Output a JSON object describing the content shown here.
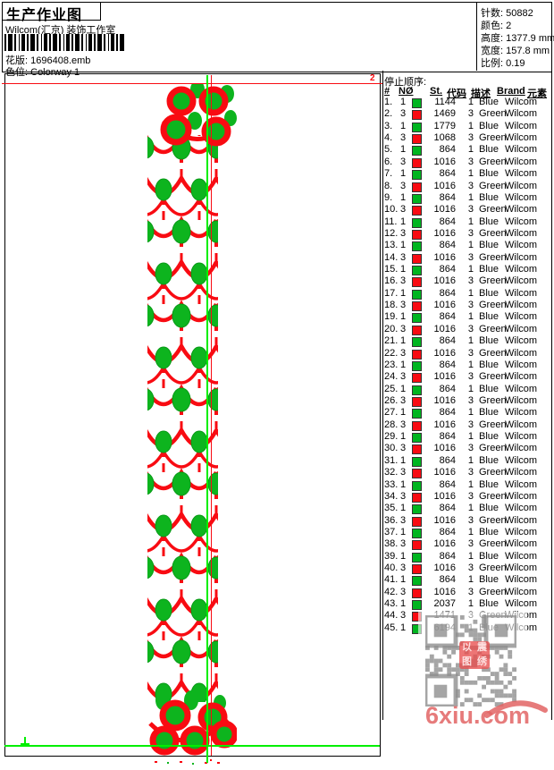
{
  "header": {
    "title": "生产作业图",
    "company": "Wilcom(汇京) 装饰工作室",
    "pattern_label": "花版:",
    "pattern_value": "1696408.emb",
    "colorway_label": "色位:",
    "colorway_value": "Colorway 1"
  },
  "info": {
    "stitches_label": "针数:",
    "stitches_value": "50882",
    "colors_label": "颜色:",
    "colors_value": "2",
    "height_label": "高度:",
    "height_value": "1377.9 mm",
    "width_label": "宽度:",
    "width_value": "157.8 mm",
    "scale_label": "比例:",
    "scale_value": "0.19"
  },
  "design": {
    "stop_marker_top": "2",
    "stitch_red": "#f80b12",
    "motif_green": "#0db41e",
    "guide_green": "#00ef00"
  },
  "table": {
    "caption": "停止顺序:",
    "columns": [
      "#",
      "NØ",
      "St.",
      "代码",
      "描述",
      "Brand",
      "元素"
    ],
    "rows": [
      {
        "n": "1.",
        "no": "1",
        "c": "#00b520",
        "st": "1144",
        "code": "1",
        "desc": "Blue",
        "brand": "Wilcom"
      },
      {
        "n": "2.",
        "no": "3",
        "c": "#f80b12",
        "st": "1469",
        "code": "3",
        "desc": "Green",
        "brand": "Wilcom"
      },
      {
        "n": "3.",
        "no": "1",
        "c": "#00b520",
        "st": "1779",
        "code": "1",
        "desc": "Blue",
        "brand": "Wilcom"
      },
      {
        "n": "4.",
        "no": "3",
        "c": "#f80b12",
        "st": "1068",
        "code": "3",
        "desc": "Green",
        "brand": "Wilcom"
      },
      {
        "n": "5.",
        "no": "1",
        "c": "#00b520",
        "st": "864",
        "code": "1",
        "desc": "Blue",
        "brand": "Wilcom"
      },
      {
        "n": "6.",
        "no": "3",
        "c": "#f80b12",
        "st": "1016",
        "code": "3",
        "desc": "Green",
        "brand": "Wilcom"
      },
      {
        "n": "7.",
        "no": "1",
        "c": "#00b520",
        "st": "864",
        "code": "1",
        "desc": "Blue",
        "brand": "Wilcom"
      },
      {
        "n": "8.",
        "no": "3",
        "c": "#f80b12",
        "st": "1016",
        "code": "3",
        "desc": "Green",
        "brand": "Wilcom"
      },
      {
        "n": "9.",
        "no": "1",
        "c": "#00b520",
        "st": "864",
        "code": "1",
        "desc": "Blue",
        "brand": "Wilcom"
      },
      {
        "n": "10.",
        "no": "3",
        "c": "#f80b12",
        "st": "1016",
        "code": "3",
        "desc": "Green",
        "brand": "Wilcom"
      },
      {
        "n": "11.",
        "no": "1",
        "c": "#00b520",
        "st": "864",
        "code": "1",
        "desc": "Blue",
        "brand": "Wilcom"
      },
      {
        "n": "12.",
        "no": "3",
        "c": "#f80b12",
        "st": "1016",
        "code": "3",
        "desc": "Green",
        "brand": "Wilcom"
      },
      {
        "n": "13.",
        "no": "1",
        "c": "#00b520",
        "st": "864",
        "code": "1",
        "desc": "Blue",
        "brand": "Wilcom"
      },
      {
        "n": "14.",
        "no": "3",
        "c": "#f80b12",
        "st": "1016",
        "code": "3",
        "desc": "Green",
        "brand": "Wilcom"
      },
      {
        "n": "15.",
        "no": "1",
        "c": "#00b520",
        "st": "864",
        "code": "1",
        "desc": "Blue",
        "brand": "Wilcom"
      },
      {
        "n": "16.",
        "no": "3",
        "c": "#f80b12",
        "st": "1016",
        "code": "3",
        "desc": "Green",
        "brand": "Wilcom"
      },
      {
        "n": "17.",
        "no": "1",
        "c": "#00b520",
        "st": "864",
        "code": "1",
        "desc": "Blue",
        "brand": "Wilcom"
      },
      {
        "n": "18.",
        "no": "3",
        "c": "#f80b12",
        "st": "1016",
        "code": "3",
        "desc": "Green",
        "brand": "Wilcom"
      },
      {
        "n": "19.",
        "no": "1",
        "c": "#00b520",
        "st": "864",
        "code": "1",
        "desc": "Blue",
        "brand": "Wilcom"
      },
      {
        "n": "20.",
        "no": "3",
        "c": "#f80b12",
        "st": "1016",
        "code": "3",
        "desc": "Green",
        "brand": "Wilcom"
      },
      {
        "n": "21.",
        "no": "1",
        "c": "#00b520",
        "st": "864",
        "code": "1",
        "desc": "Blue",
        "brand": "Wilcom"
      },
      {
        "n": "22.",
        "no": "3",
        "c": "#f80b12",
        "st": "1016",
        "code": "3",
        "desc": "Green",
        "brand": "Wilcom"
      },
      {
        "n": "23.",
        "no": "1",
        "c": "#00b520",
        "st": "864",
        "code": "1",
        "desc": "Blue",
        "brand": "Wilcom"
      },
      {
        "n": "24.",
        "no": "3",
        "c": "#f80b12",
        "st": "1016",
        "code": "3",
        "desc": "Green",
        "brand": "Wilcom"
      },
      {
        "n": "25.",
        "no": "1",
        "c": "#00b520",
        "st": "864",
        "code": "1",
        "desc": "Blue",
        "brand": "Wilcom"
      },
      {
        "n": "26.",
        "no": "3",
        "c": "#f80b12",
        "st": "1016",
        "code": "3",
        "desc": "Green",
        "brand": "Wilcom"
      },
      {
        "n": "27.",
        "no": "1",
        "c": "#00b520",
        "st": "864",
        "code": "1",
        "desc": "Blue",
        "brand": "Wilcom"
      },
      {
        "n": "28.",
        "no": "3",
        "c": "#f80b12",
        "st": "1016",
        "code": "3",
        "desc": "Green",
        "brand": "Wilcom"
      },
      {
        "n": "29.",
        "no": "1",
        "c": "#00b520",
        "st": "864",
        "code": "1",
        "desc": "Blue",
        "brand": "Wilcom"
      },
      {
        "n": "30.",
        "no": "3",
        "c": "#f80b12",
        "st": "1016",
        "code": "3",
        "desc": "Green",
        "brand": "Wilcom"
      },
      {
        "n": "31.",
        "no": "1",
        "c": "#00b520",
        "st": "864",
        "code": "1",
        "desc": "Blue",
        "brand": "Wilcom"
      },
      {
        "n": "32.",
        "no": "3",
        "c": "#f80b12",
        "st": "1016",
        "code": "3",
        "desc": "Green",
        "brand": "Wilcom"
      },
      {
        "n": "33.",
        "no": "1",
        "c": "#00b520",
        "st": "864",
        "code": "1",
        "desc": "Blue",
        "brand": "Wilcom"
      },
      {
        "n": "34.",
        "no": "3",
        "c": "#f80b12",
        "st": "1016",
        "code": "3",
        "desc": "Green",
        "brand": "Wilcom"
      },
      {
        "n": "35.",
        "no": "1",
        "c": "#00b520",
        "st": "864",
        "code": "1",
        "desc": "Blue",
        "brand": "Wilcom"
      },
      {
        "n": "36.",
        "no": "3",
        "c": "#f80b12",
        "st": "1016",
        "code": "3",
        "desc": "Green",
        "brand": "Wilcom"
      },
      {
        "n": "37.",
        "no": "1",
        "c": "#00b520",
        "st": "864",
        "code": "1",
        "desc": "Blue",
        "brand": "Wilcom"
      },
      {
        "n": "38.",
        "no": "3",
        "c": "#f80b12",
        "st": "1016",
        "code": "3",
        "desc": "Green",
        "brand": "Wilcom"
      },
      {
        "n": "39.",
        "no": "1",
        "c": "#00b520",
        "st": "864",
        "code": "1",
        "desc": "Blue",
        "brand": "Wilcom"
      },
      {
        "n": "40.",
        "no": "3",
        "c": "#f80b12",
        "st": "1016",
        "code": "3",
        "desc": "Green",
        "brand": "Wilcom"
      },
      {
        "n": "41.",
        "no": "1",
        "c": "#00b520",
        "st": "864",
        "code": "1",
        "desc": "Blue",
        "brand": "Wilcom"
      },
      {
        "n": "42.",
        "no": "3",
        "c": "#f80b12",
        "st": "1016",
        "code": "3",
        "desc": "Green",
        "brand": "Wilcom"
      },
      {
        "n": "43.",
        "no": "1",
        "c": "#00b520",
        "st": "2037",
        "code": "1",
        "desc": "Blue",
        "brand": "Wilcom"
      },
      {
        "n": "44.",
        "no": "3",
        "c": "#f80b12",
        "st": "1471",
        "code": "3",
        "desc": "Green",
        "brand": "Wilcom"
      },
      {
        "n": "45.",
        "no": "1",
        "c": "#00b520",
        "st": "6194",
        "code": "1",
        "desc": "Blue",
        "brand": "Wilcom"
      }
    ]
  },
  "watermark": {
    "site": "6xiu.com",
    "stamp_chars": [
      "以",
      "震",
      "图",
      "绣"
    ]
  }
}
